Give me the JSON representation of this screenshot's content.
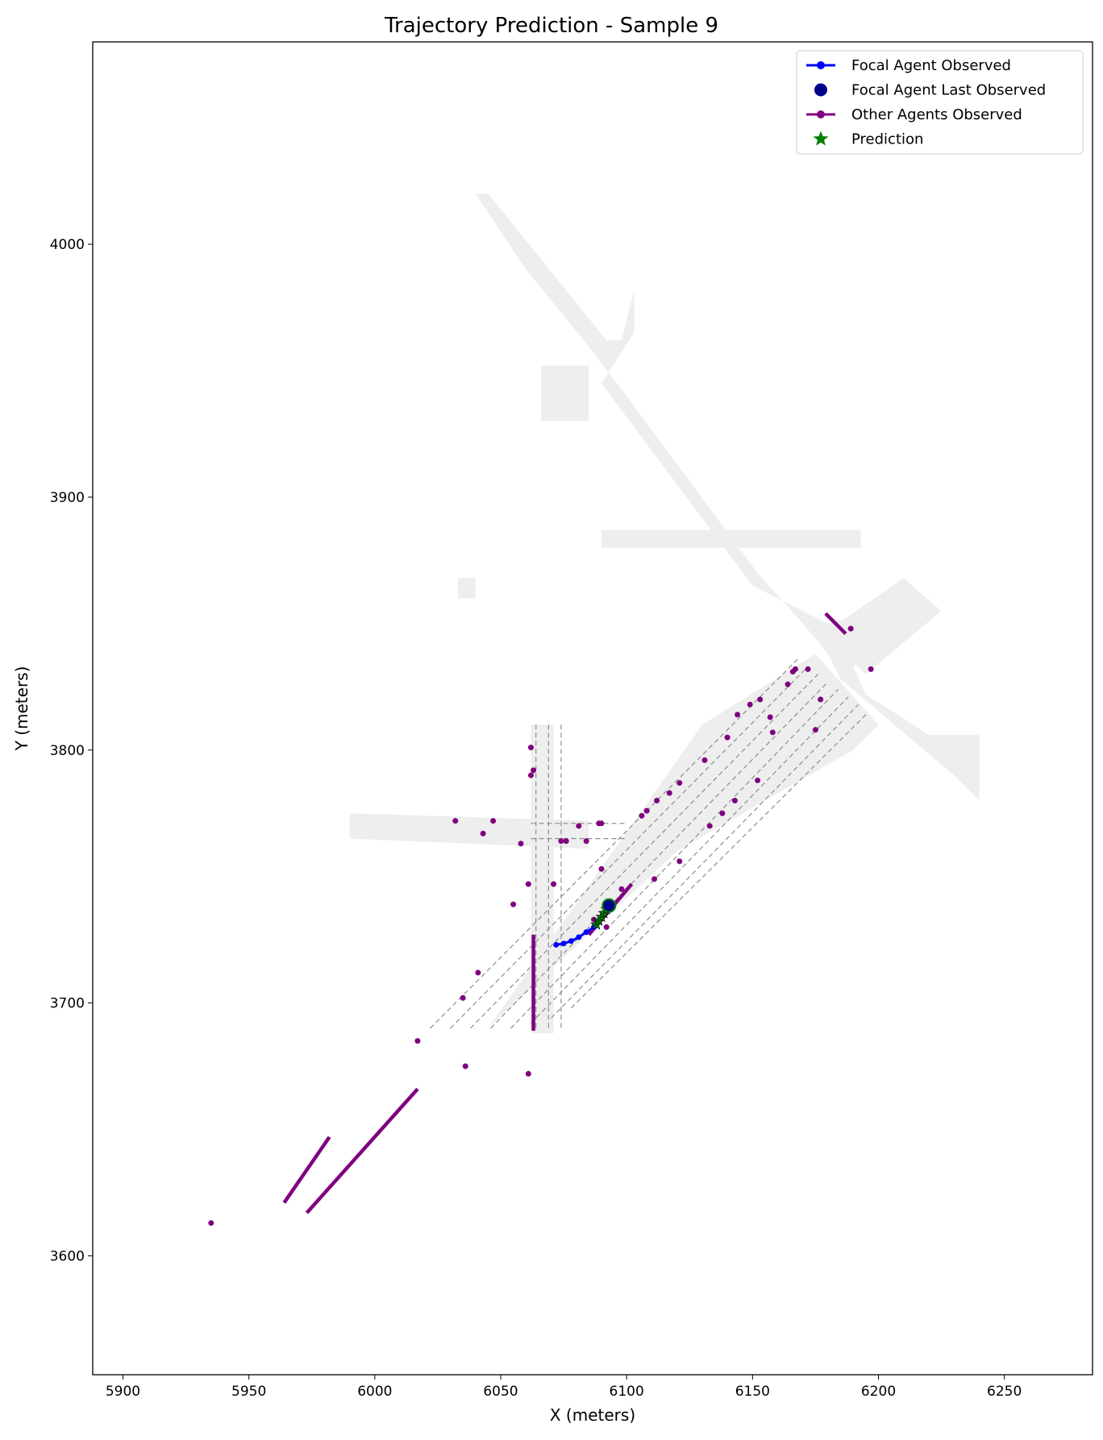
{
  "chart_data": {
    "type": "scatter",
    "title": "Trajectory Prediction - Sample 9",
    "xlabel": "X (meters)",
    "ylabel": "Y (meters)",
    "xlim": [
      5888,
      6285
    ],
    "ylim": [
      3553,
      4080
    ],
    "xticks": [
      5900,
      5950,
      6000,
      6050,
      6100,
      6150,
      6200,
      6250
    ],
    "yticks": [
      3600,
      3700,
      3800,
      3900,
      4000
    ],
    "grid": false,
    "legend_position": "upper right",
    "legend": [
      {
        "label": "Focal Agent Observed",
        "color": "#0000ff",
        "marker": "line-dot"
      },
      {
        "label": "Focal Agent Last Observed",
        "color": "#00008b",
        "marker": "big-dot"
      },
      {
        "label": "Other Agents Observed",
        "color": "#800080",
        "marker": "line-dot"
      },
      {
        "label": "Prediction",
        "color": "#008000",
        "marker": "star"
      }
    ],
    "colors": {
      "road": "#eeeeee",
      "lane": "#8c8c8c",
      "focal": "#0000ff",
      "focal_last": "#00008b",
      "other": "#800080",
      "prediction": "#008000"
    },
    "map_polygons": [
      [
        [
          6020,
          4020
        ],
        [
          6045,
          4020
        ],
        [
          6092,
          3962
        ],
        [
          6098,
          3962
        ],
        [
          6103,
          3982
        ],
        [
          6103,
          3965
        ],
        [
          6090,
          3945
        ],
        [
          6150,
          3865
        ],
        [
          6180,
          3850
        ],
        [
          6220,
          3860
        ],
        [
          6190,
          3833
        ],
        [
          6195,
          3822
        ],
        [
          6220,
          3806
        ],
        [
          6240,
          3806
        ],
        [
          6240,
          3780
        ],
        [
          6230,
          3790
        ],
        [
          6185,
          3828
        ],
        [
          6180,
          3838
        ],
        [
          6170,
          3850
        ],
        [
          6152,
          3870
        ],
        [
          6100,
          3940
        ],
        [
          6083,
          3962
        ],
        [
          6060,
          3990
        ],
        [
          6040,
          4020
        ]
      ],
      [
        [
          6066,
          3952
        ],
        [
          6085,
          3952
        ],
        [
          6085,
          3930
        ],
        [
          6066,
          3930
        ]
      ],
      [
        [
          6090,
          3887
        ],
        [
          6193,
          3887
        ],
        [
          6193,
          3880
        ],
        [
          6090,
          3880
        ]
      ],
      [
        [
          6033,
          3868
        ],
        [
          6040,
          3868
        ],
        [
          6040,
          3860
        ],
        [
          6033,
          3860
        ]
      ],
      [
        [
          6178,
          3846
        ],
        [
          6210,
          3868
        ],
        [
          6225,
          3855
        ],
        [
          6195,
          3830
        ]
      ],
      [
        [
          5990,
          3775
        ],
        [
          6085,
          3772
        ],
        [
          6085,
          3761
        ],
        [
          5990,
          3765
        ]
      ],
      [
        [
          6062,
          3810
        ],
        [
          6071,
          3810
        ],
        [
          6071,
          3688
        ],
        [
          6062,
          3688
        ]
      ],
      [
        [
          6020,
          3690
        ],
        [
          6045,
          3690
        ],
        [
          6130,
          3810
        ],
        [
          6175,
          3838
        ],
        [
          6200,
          3810
        ],
        [
          6190,
          3800
        ],
        [
          6120,
          3760
        ],
        [
          6045,
          3690
        ]
      ]
    ],
    "lane_lines": [
      [
        [
          6022,
          3690
        ],
        [
          6168,
          3836
        ]
      ],
      [
        [
          6030,
          3690
        ],
        [
          6172,
          3833
        ]
      ],
      [
        [
          6038,
          3690
        ],
        [
          6176,
          3830
        ]
      ],
      [
        [
          6046,
          3690
        ],
        [
          6180,
          3827
        ]
      ],
      [
        [
          6054,
          3690
        ],
        [
          6184,
          3824
        ]
      ],
      [
        [
          6062,
          3692
        ],
        [
          6188,
          3821
        ]
      ],
      [
        [
          6070,
          3694
        ],
        [
          6192,
          3818
        ]
      ],
      [
        [
          6078,
          3698
        ],
        [
          6196,
          3815
        ]
      ],
      [
        [
          6064,
          3810
        ],
        [
          6064,
          3690
        ]
      ],
      [
        [
          6069,
          3810
        ],
        [
          6069,
          3690
        ]
      ],
      [
        [
          6074,
          3810
        ],
        [
          6074,
          3690
        ]
      ],
      [
        [
          6062,
          3771
        ],
        [
          6100,
          3771
        ]
      ],
      [
        [
          6062,
          3765
        ],
        [
          6100,
          3765
        ]
      ]
    ],
    "focal_observed": {
      "x": [
        6072,
        6075,
        6078,
        6081,
        6084,
        6087,
        6089,
        6091,
        6093
      ],
      "y": [
        3723,
        3723.5,
        3724.5,
        3726,
        3728,
        3730,
        3732.5,
        3735.5,
        3738.5
      ]
    },
    "focal_last_observed": {
      "x": 6093,
      "y": 3738.5
    },
    "prediction": {
      "x": [
        6088,
        6089,
        6090,
        6091,
        6092,
        6093
      ],
      "y": [
        3731,
        3732.5,
        3734,
        3735.5,
        3737,
        3738.5
      ]
    },
    "other_tracks": [
      {
        "x": [
          5964,
          5982
        ],
        "y": [
          3621,
          3647
        ]
      },
      {
        "x": [
          5973,
          6017
        ],
        "y": [
          3617,
          3666
        ]
      },
      {
        "x": [
          6063,
          6063
        ],
        "y": [
          3727,
          3689
        ]
      },
      {
        "x": [
          6085,
          6102
        ],
        "y": [
          3727,
          3747
        ]
      },
      {
        "x": [
          6179,
          6187
        ],
        "y": [
          3854,
          3846
        ]
      }
    ],
    "other_points": {
      "x": [
        5935,
        6017,
        6036,
        6035,
        6061,
        6041,
        6043,
        6047,
        6032,
        6062,
        6062,
        6055,
        6058,
        6061,
        6063,
        6076,
        6081,
        6084,
        6090,
        6090,
        6089,
        6074,
        6106,
        6108,
        6112,
        6117,
        6121,
        6131,
        6140,
        6143,
        6144,
        6149,
        6153,
        6158,
        6164,
        6166,
        6172,
        6177,
        6175,
        6197,
        6189,
        6167,
        6157,
        6152,
        6138,
        6133,
        6121,
        6111,
        6098,
        6092,
        6071,
        6087
      ],
      "y": [
        3613,
        3685,
        3675,
        3702,
        3672,
        3712,
        3767,
        3772,
        3772,
        3801,
        3790,
        3739,
        3763,
        3747,
        3792,
        3764,
        3770,
        3764,
        3753,
        3771,
        3771,
        3764,
        3774,
        3776,
        3780,
        3783,
        3787,
        3796,
        3805,
        3780,
        3814,
        3818,
        3820,
        3807,
        3826,
        3831,
        3832,
        3820,
        3808,
        3832,
        3848,
        3832,
        3813,
        3788,
        3775,
        3770,
        3756,
        3749,
        3745,
        3730,
        3747,
        3733
      ]
    }
  }
}
